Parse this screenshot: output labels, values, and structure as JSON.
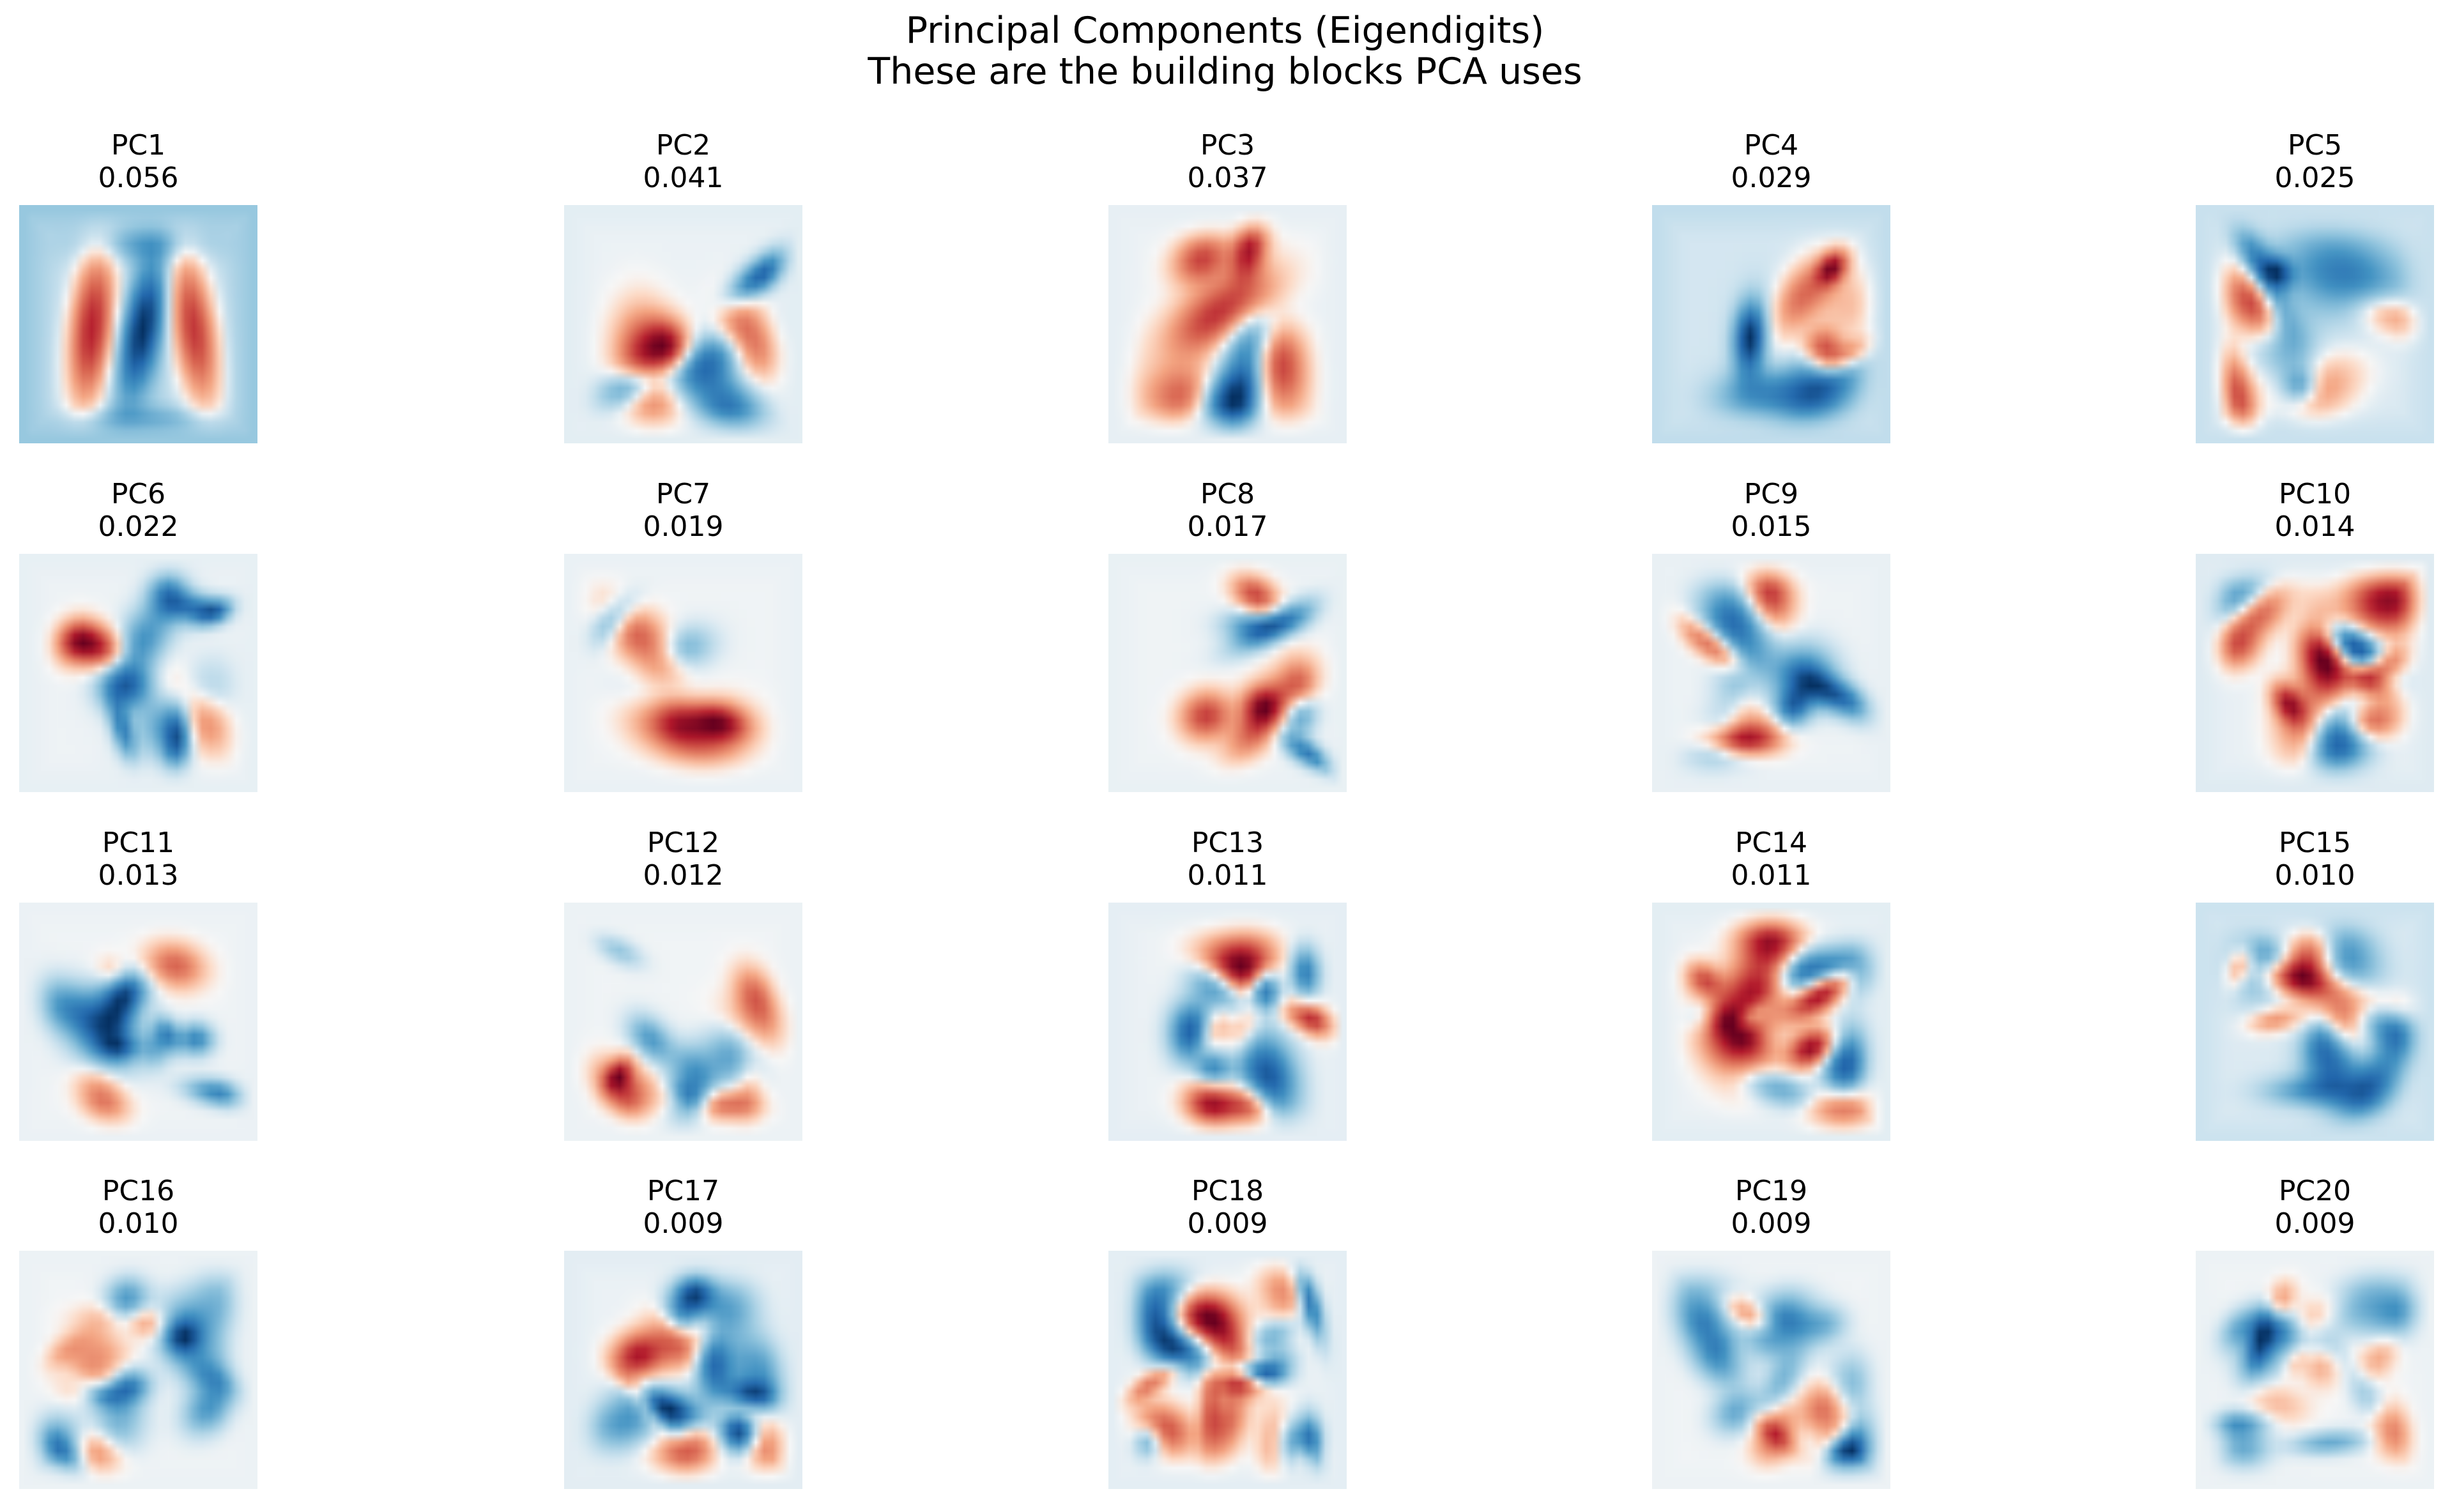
{
  "figure": {
    "title_line1": "Principal Components (Eigendigits)",
    "title_line2": "These are the building blocks PCA uses"
  },
  "colormap": {
    "name": "RdBu_r",
    "negative": "#053061",
    "mid_negative": "#4393c3",
    "neutral": "#f7f7f7",
    "mid_positive": "#d6604d",
    "positive": "#67001f"
  },
  "components": [
    {
      "label": "PC1",
      "ratio": "0.056"
    },
    {
      "label": "PC2",
      "ratio": "0.041"
    },
    {
      "label": "PC3",
      "ratio": "0.037"
    },
    {
      "label": "PC4",
      "ratio": "0.029"
    },
    {
      "label": "PC5",
      "ratio": "0.025"
    },
    {
      "label": "PC6",
      "ratio": "0.022"
    },
    {
      "label": "PC7",
      "ratio": "0.019"
    },
    {
      "label": "PC8",
      "ratio": "0.017"
    },
    {
      "label": "PC9",
      "ratio": "0.015"
    },
    {
      "label": "PC10",
      "ratio": "0.014"
    },
    {
      "label": "PC11",
      "ratio": "0.013"
    },
    {
      "label": "PC12",
      "ratio": "0.012"
    },
    {
      "label": "PC13",
      "ratio": "0.011"
    },
    {
      "label": "PC14",
      "ratio": "0.011"
    },
    {
      "label": "PC15",
      "ratio": "0.010"
    },
    {
      "label": "PC16",
      "ratio": "0.010"
    },
    {
      "label": "PC17",
      "ratio": "0.009"
    },
    {
      "label": "PC18",
      "ratio": "0.009"
    },
    {
      "label": "PC19",
      "ratio": "0.009"
    },
    {
      "label": "PC20",
      "ratio": "0.009"
    }
  ]
}
